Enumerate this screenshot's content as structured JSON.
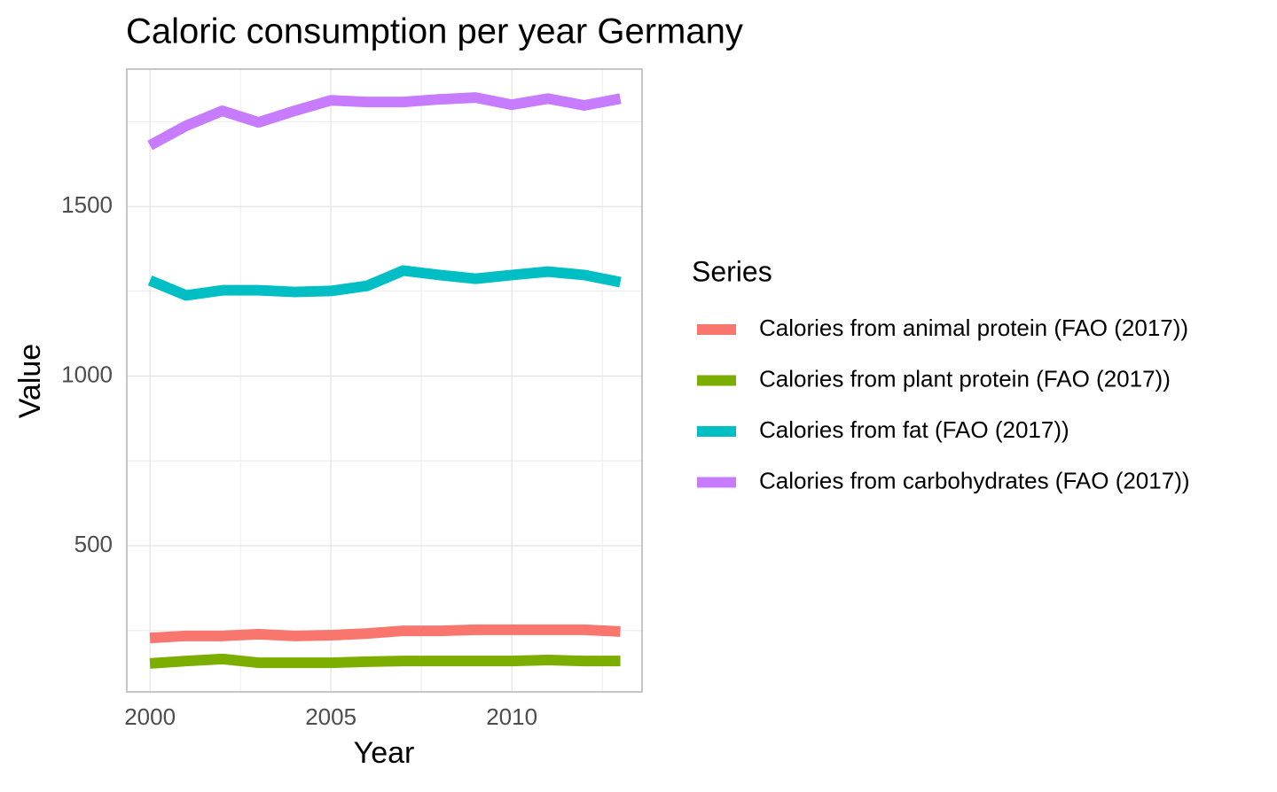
{
  "chart_data": {
    "type": "line",
    "title": "Caloric consumption per year Germany",
    "x_label": "Year",
    "y_label": "Value",
    "legend_title": "Series",
    "legend_position": "right",
    "x": [
      2000,
      2001,
      2002,
      2003,
      2004,
      2005,
      2006,
      2007,
      2008,
      2009,
      2010,
      2011,
      2012,
      2013
    ],
    "series": [
      {
        "name": "Calories from animal protein (FAO (2017))",
        "color": "#f8766d",
        "values": [
          228,
          234,
          234,
          239,
          234,
          236,
          241,
          249,
          249,
          252,
          252,
          252,
          252,
          247
        ]
      },
      {
        "name": "Calories from plant protein (FAO (2017))",
        "color": "#7cae00",
        "values": [
          153,
          160,
          166,
          155,
          155,
          155,
          158,
          160,
          160,
          160,
          160,
          163,
          160,
          160
        ]
      },
      {
        "name": "Calories from fat (FAO (2017))",
        "color": "#00bfc4",
        "values": [
          1282,
          1238,
          1253,
          1253,
          1248,
          1251,
          1266,
          1311,
          1298,
          1287,
          1298,
          1308,
          1298,
          1277
        ]
      },
      {
        "name": "Calories from carbohydrates (FAO (2017))",
        "color": "#c77cff",
        "values": [
          1680,
          1738,
          1782,
          1748,
          1782,
          1813,
          1808,
          1808,
          1816,
          1821,
          1800,
          1818,
          1798,
          1818
        ]
      }
    ],
    "xlim": [
      1999.36,
      2013.6
    ],
    "xticks": [
      2000,
      2005,
      2010
    ],
    "xminor": [
      2002.5,
      2007.5,
      2012.5
    ],
    "ylim": [
      69,
      1905
    ],
    "yticks": [
      500,
      1000,
      1500
    ],
    "yminor": [
      250,
      750,
      1250,
      1750
    ],
    "grid": true
  }
}
